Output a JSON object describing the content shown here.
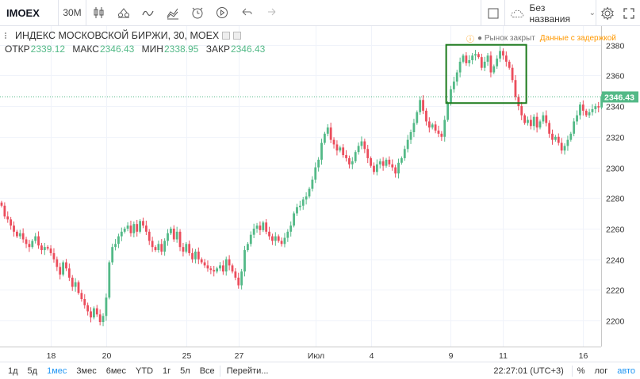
{
  "toolbar": {
    "symbol": "IMOEX",
    "interval": "30M",
    "layout_name": "Без названия",
    "icons": [
      "candles-icon",
      "indicators-icon",
      "compare-icon",
      "templates-icon",
      "alert-icon",
      "replay-icon",
      "undo-icon",
      "redo-icon"
    ]
  },
  "legend": {
    "title": "ИНДЕКС МОСКОВСКОЙ БИРЖИ, 30, MOEX",
    "open_label": "ОТКР",
    "open": "2339.12",
    "high_label": "МАКС",
    "high": "2346.43",
    "low_label": "МИН",
    "low": "2338.95",
    "close_label": "ЗАКР",
    "close": "2346.43"
  },
  "status": {
    "market": "Рынок закрыт",
    "delay": "Данные с задержкой"
  },
  "bottom": {
    "ranges": [
      "1д",
      "5д",
      "1мес",
      "3мес",
      "6мес",
      "YTD",
      "1г",
      "5л",
      "Все"
    ],
    "active_range": "1мес",
    "goto": "Перейти...",
    "clock": "22:27:01 (UTC+3)",
    "percent": "%",
    "log": "лог",
    "auto": "авто"
  },
  "chart_data": {
    "type": "candlestick",
    "ylim": [
      2183,
      2385
    ],
    "y_ticks": [
      2200,
      2220,
      2240,
      2260,
      2280,
      2300,
      2320,
      2340,
      2360,
      2380
    ],
    "x_ticks": [
      {
        "label": "18",
        "index": 16
      },
      {
        "label": "20",
        "index": 34
      },
      {
        "label": "25",
        "index": 60
      },
      {
        "label": "27",
        "index": 77
      },
      {
        "label": "Июл",
        "index": 102
      },
      {
        "label": "4",
        "index": 120
      },
      {
        "label": "9",
        "index": 146
      },
      {
        "label": "11",
        "index": 163
      },
      {
        "label": "16",
        "index": 189
      }
    ],
    "last_price": "2346.43",
    "last_price_value": 2346.43,
    "highlight_box": {
      "x0_index": 145,
      "x1_index": 170,
      "y0": 2342,
      "y1": 2380
    },
    "colors": {
      "up": "#53b987",
      "down": "#eb4d5c",
      "last_price": "#53b987",
      "highlight": "#1b7a1b"
    },
    "closes": [
      2275,
      2268,
      2266,
      2262,
      2258,
      2255,
      2257,
      2253,
      2250,
      2248,
      2252,
      2255,
      2249,
      2246,
      2248,
      2247,
      2244,
      2240,
      2235,
      2230,
      2238,
      2234,
      2228,
      2222,
      2225,
      2218,
      2214,
      2210,
      2206,
      2202,
      2208,
      2204,
      2199,
      2203,
      2215,
      2238,
      2248,
      2250,
      2255,
      2258,
      2260,
      2262,
      2257,
      2263,
      2258,
      2265,
      2262,
      2258,
      2252,
      2248,
      2246,
      2250,
      2245,
      2252,
      2257,
      2260,
      2253,
      2258,
      2248,
      2245,
      2250,
      2244,
      2240,
      2245,
      2240,
      2238,
      2236,
      2234,
      2233,
      2232,
      2234,
      2236,
      2232,
      2240,
      2236,
      2232,
      2228,
      2223,
      2232,
      2246,
      2250,
      2256,
      2260,
      2262,
      2259,
      2264,
      2258,
      2255,
      2252,
      2255,
      2252,
      2250,
      2254,
      2258,
      2262,
      2270,
      2274,
      2275,
      2279,
      2281,
      2286,
      2292,
      2300,
      2305,
      2316,
      2322,
      2326,
      2318,
      2315,
      2311,
      2313,
      2308,
      2306,
      2302,
      2304,
      2310,
      2314,
      2317,
      2312,
      2306,
      2301,
      2297,
      2302,
      2304,
      2301,
      2305,
      2302,
      2300,
      2296,
      2303,
      2306,
      2312,
      2318,
      2323,
      2329,
      2336,
      2344,
      2337,
      2330,
      2326,
      2328,
      2324,
      2322,
      2320,
      2331,
      2342,
      2351,
      2356,
      2362,
      2369,
      2373,
      2368,
      2370,
      2373,
      2374,
      2372,
      2365,
      2369,
      2373,
      2362,
      2366,
      2371,
      2376,
      2373,
      2369,
      2365,
      2357,
      2346,
      2340,
      2334,
      2329,
      2331,
      2327,
      2333,
      2326,
      2330,
      2334,
      2329,
      2322,
      2318,
      2320,
      2316,
      2311,
      2314,
      2318,
      2322,
      2330,
      2334,
      2341,
      2337,
      2334,
      2336,
      2338,
      2340,
      2339.12,
      2346.43
    ]
  }
}
